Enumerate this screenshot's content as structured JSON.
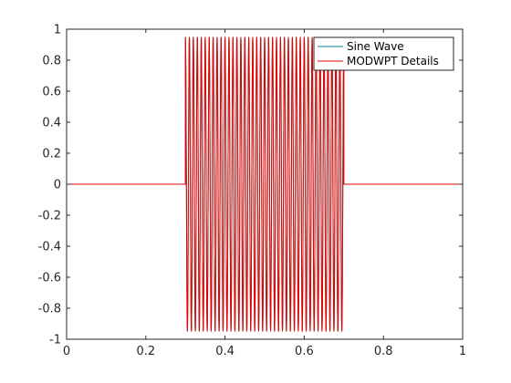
{
  "chart_data": {
    "type": "line",
    "title": "",
    "xlabel": "",
    "ylabel": "",
    "xlim": [
      0,
      1
    ],
    "ylim": [
      -1,
      1
    ],
    "grid": false,
    "legend_position": "top-right",
    "x_ticks": [
      0,
      0.2,
      0.4,
      0.6,
      0.8,
      1
    ],
    "x_tick_labels": [
      "0",
      "0.2",
      "0.4",
      "0.6",
      "0.8",
      "1"
    ],
    "y_ticks": [
      -1,
      -0.8,
      -0.6,
      -0.4,
      -0.2,
      0,
      0.2,
      0.4,
      0.6,
      0.8,
      1
    ],
    "y_tick_labels": [
      "-1",
      "-0.8",
      "-0.6",
      "-0.4",
      "-0.2",
      "0",
      "0.2",
      "0.4",
      "0.6",
      "0.8",
      "1"
    ],
    "series": [
      {
        "name": "Sine Wave",
        "color": "#00808c",
        "x": [
          0,
          0.3,
          0.3,
          0.7,
          0.7,
          1
        ],
        "y": [
          0,
          0,
          0.95,
          -0.95,
          0,
          0
        ],
        "burst": {
          "x_start": 0.3,
          "x_end": 0.7,
          "amplitude": 0.95,
          "cycles": 40
        }
      },
      {
        "name": "MODWPT Details",
        "color": "#e60000",
        "x": [
          0,
          0.3,
          0.3,
          0.7,
          0.7,
          1
        ],
        "y": [
          0,
          0,
          0.95,
          -0.95,
          0,
          0
        ],
        "burst": {
          "x_start": 0.3,
          "x_end": 0.7,
          "amplitude": 0.95,
          "cycles": 40
        }
      }
    ]
  }
}
